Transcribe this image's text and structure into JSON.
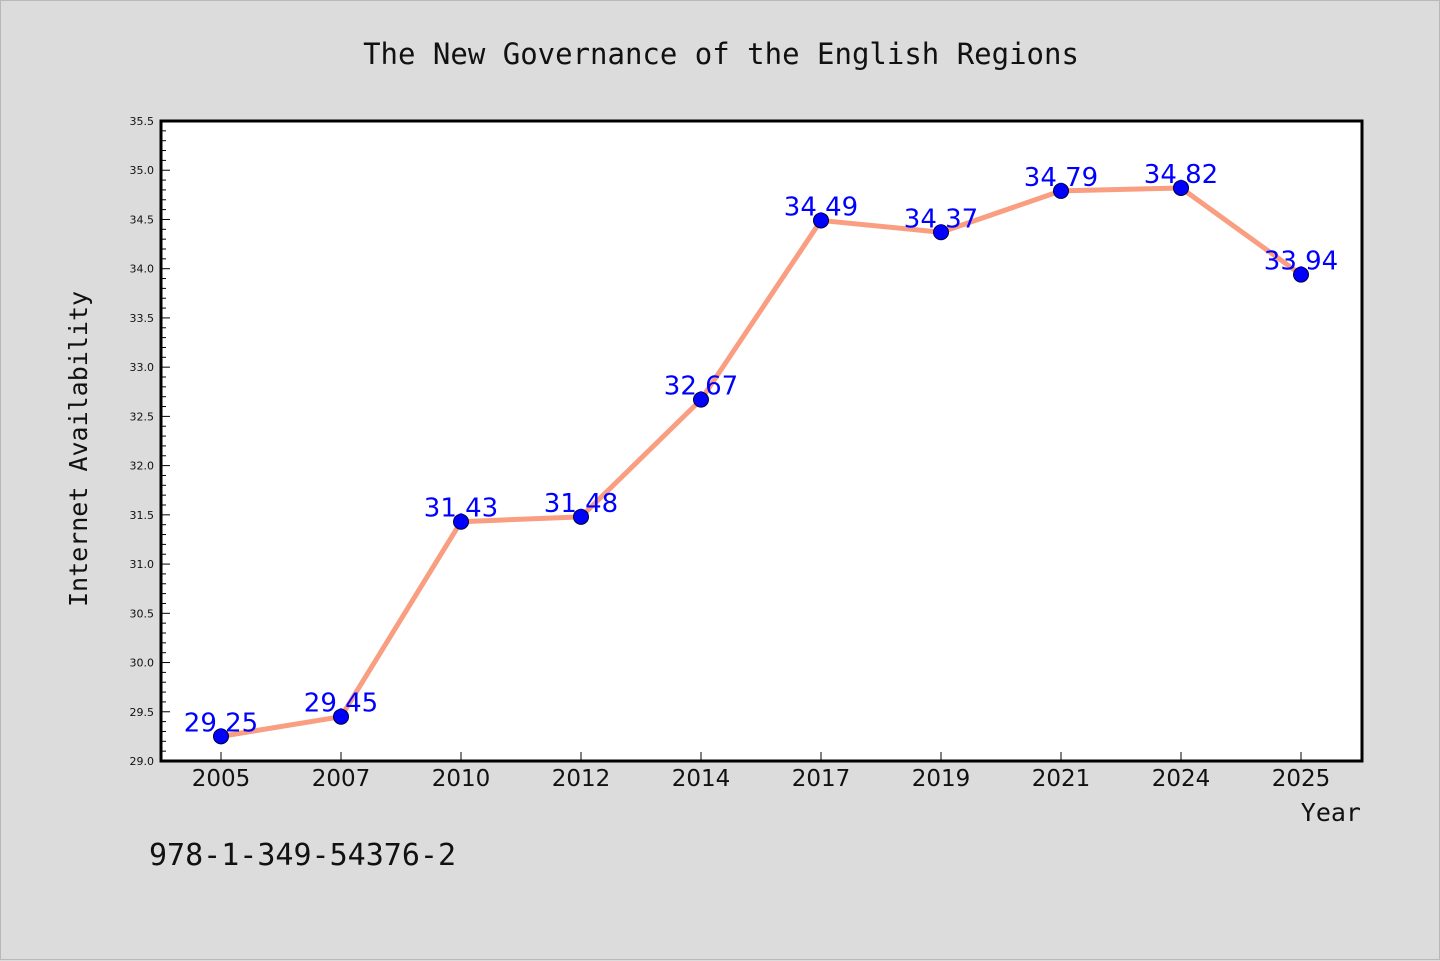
{
  "chart_data": {
    "type": "line",
    "title": "The New Governance of the English Regions",
    "xlabel": "Year",
    "ylabel": "Internet Availability",
    "categories": [
      "2005",
      "2007",
      "2010",
      "2012",
      "2014",
      "2017",
      "2019",
      "2021",
      "2024",
      "2025"
    ],
    "series": [
      {
        "values": [
          29.25,
          29.45,
          31.43,
          31.48,
          32.67,
          34.49,
          34.37,
          34.79,
          34.82,
          33.94
        ],
        "data_labels": [
          "29.25",
          "29.45",
          "31.43",
          "31.48",
          "32.67",
          "34.49",
          "34.37",
          "34.79",
          "34.82",
          "33.94"
        ]
      }
    ],
    "ylim": [
      29.0,
      35.5
    ],
    "yticks": [
      "29.0",
      "29.5",
      "30.0",
      "30.5",
      "31.0",
      "31.5",
      "32.0",
      "32.5",
      "33.0",
      "33.5",
      "34.0",
      "34.5",
      "35.0",
      "35.5"
    ],
    "grid": false,
    "line_color": "#fa9e82",
    "marker_color": "#0000ff",
    "label_color": "#0000ff"
  },
  "footer": {
    "isbn": "978-1-349-54376-2"
  }
}
